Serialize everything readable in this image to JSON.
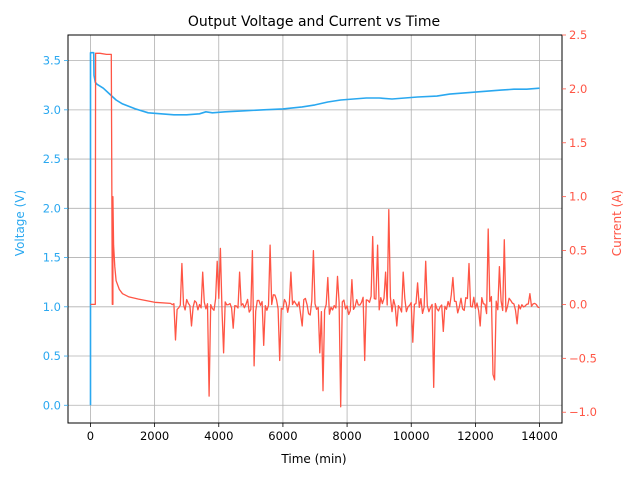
{
  "chart_data": {
    "type": "line",
    "title": "Output Voltage and Current vs Time",
    "xlabel": "Time (min)",
    "ylabel_left": "Voltage (V)",
    "ylabel_right": "Current (A)",
    "xlim": [
      -700,
      14700
    ],
    "ylim_left": [
      -0.18,
      3.76
    ],
    "ylim_right": [
      -1.1,
      2.5
    ],
    "xticks": [
      0,
      2000,
      4000,
      6000,
      8000,
      10000,
      12000,
      14000
    ],
    "yticks_left": [
      0.0,
      0.5,
      1.0,
      1.5,
      2.0,
      2.5,
      3.0,
      3.5
    ],
    "yticks_right": [
      -1.0,
      -0.5,
      0.0,
      0.5,
      1.0,
      1.5,
      2.0,
      2.5
    ],
    "xtick_labels": [
      "0",
      "2000",
      "4000",
      "6000",
      "8000",
      "10000",
      "12000",
      "14000"
    ],
    "yticks_left_labels": [
      "0.0",
      "0.5",
      "1.0",
      "1.5",
      "2.0",
      "2.5",
      "3.0",
      "3.5"
    ],
    "yticks_right_labels": [
      "−1.0",
      "−0.5",
      "0.0",
      "0.5",
      "1.0",
      "1.5",
      "2.0",
      "2.5"
    ],
    "grid": true,
    "colors": {
      "voltage": "#2aa8f0",
      "current": "#ff5545"
    },
    "series": [
      {
        "axis": "left",
        "x": [
          0,
          0,
          30,
          60,
          100,
          110,
          150,
          200,
          300,
          400,
          600,
          800,
          1000,
          1400,
          1800,
          2200,
          2600,
          3000,
          3400,
          3600,
          3800,
          4200,
          4800,
          5400,
          6000,
          6600,
          7000,
          7400,
          7800,
          8200,
          8600,
          9000,
          9400,
          9800,
          10200,
          10800,
          11200,
          11600,
          12000,
          12400,
          12800,
          13200,
          13600,
          14000
        ],
        "y": [
          0.0,
          3.58,
          3.58,
          3.58,
          3.58,
          3.35,
          3.28,
          3.26,
          3.24,
          3.22,
          3.16,
          3.1,
          3.06,
          3.01,
          2.97,
          2.96,
          2.95,
          2.95,
          2.96,
          2.98,
          2.97,
          2.98,
          2.99,
          3.0,
          3.01,
          3.03,
          3.05,
          3.08,
          3.1,
          3.11,
          3.12,
          3.12,
          3.11,
          3.12,
          3.13,
          3.14,
          3.16,
          3.17,
          3.18,
          3.19,
          3.2,
          3.21,
          3.21,
          3.22
        ]
      },
      {
        "axis": "right",
        "x": [
          0,
          60,
          150,
          160,
          300,
          500,
          650,
          680,
          700,
          700,
          720,
          760,
          800,
          900,
          1000,
          1200,
          1500,
          2000,
          2500
        ],
        "y": [
          0.0,
          0.0,
          0.0,
          2.33,
          2.33,
          2.32,
          2.32,
          0.0,
          0.0,
          1.0,
          0.55,
          0.35,
          0.22,
          0.14,
          0.1,
          0.07,
          0.05,
          0.02,
          0.01
        ]
      }
    ],
    "current_spikes": [
      {
        "x": 2650,
        "y": -0.33
      },
      {
        "x": 2850,
        "y": 0.38
      },
      {
        "x": 3150,
        "y": -0.2
      },
      {
        "x": 3500,
        "y": 0.3
      },
      {
        "x": 3700,
        "y": -0.85
      },
      {
        "x": 3950,
        "y": 0.4
      },
      {
        "x": 4050,
        "y": 0.52
      },
      {
        "x": 4150,
        "y": -0.45
      },
      {
        "x": 4450,
        "y": -0.22
      },
      {
        "x": 4650,
        "y": 0.3
      },
      {
        "x": 5050,
        "y": 0.5
      },
      {
        "x": 5100,
        "y": -0.57
      },
      {
        "x": 5400,
        "y": -0.38
      },
      {
        "x": 5600,
        "y": 0.55
      },
      {
        "x": 5900,
        "y": -0.52
      },
      {
        "x": 6250,
        "y": 0.3
      },
      {
        "x": 6600,
        "y": -0.2
      },
      {
        "x": 6950,
        "y": 0.5
      },
      {
        "x": 7150,
        "y": -0.45
      },
      {
        "x": 7250,
        "y": -0.8
      },
      {
        "x": 7400,
        "y": 0.25
      },
      {
        "x": 7700,
        "y": 0.26
      },
      {
        "x": 7800,
        "y": -0.95
      },
      {
        "x": 8150,
        "y": 0.23
      },
      {
        "x": 8550,
        "y": -0.52
      },
      {
        "x": 8800,
        "y": 0.63
      },
      {
        "x": 8950,
        "y": 0.55
      },
      {
        "x": 9200,
        "y": 0.3
      },
      {
        "x": 9300,
        "y": 0.88
      },
      {
        "x": 9550,
        "y": -0.2
      },
      {
        "x": 9750,
        "y": 0.3
      },
      {
        "x": 10050,
        "y": -0.35
      },
      {
        "x": 10200,
        "y": 0.2
      },
      {
        "x": 10450,
        "y": 0.4
      },
      {
        "x": 10700,
        "y": -0.77
      },
      {
        "x": 11000,
        "y": -0.25
      },
      {
        "x": 11300,
        "y": 0.25
      },
      {
        "x": 11800,
        "y": 0.38
      },
      {
        "x": 12150,
        "y": -0.2
      },
      {
        "x": 12400,
        "y": 0.7
      },
      {
        "x": 12550,
        "y": -0.65
      },
      {
        "x": 12600,
        "y": -0.7
      },
      {
        "x": 12750,
        "y": 0.35
      },
      {
        "x": 12900,
        "y": 0.6
      },
      {
        "x": 13300,
        "y": -0.18
      },
      {
        "x": 13700,
        "y": 0.1
      }
    ]
  }
}
